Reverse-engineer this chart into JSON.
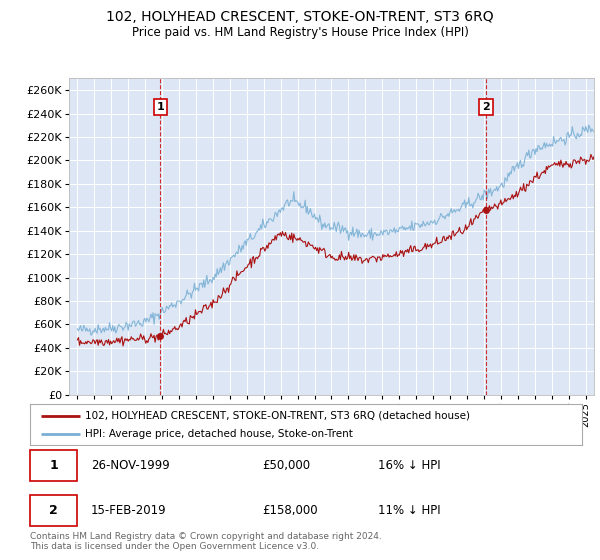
{
  "title": "102, HOLYHEAD CRESCENT, STOKE-ON-TRENT, ST3 6RQ",
  "subtitle": "Price paid vs. HM Land Registry's House Price Index (HPI)",
  "ylabel_ticks": [
    "£0",
    "£20K",
    "£40K",
    "£60K",
    "£80K",
    "£100K",
    "£120K",
    "£140K",
    "£160K",
    "£180K",
    "£200K",
    "£220K",
    "£240K",
    "£260K"
  ],
  "ytick_values": [
    0,
    20000,
    40000,
    60000,
    80000,
    100000,
    120000,
    140000,
    160000,
    180000,
    200000,
    220000,
    240000,
    260000
  ],
  "ylim": [
    0,
    270000
  ],
  "xlim_start": 1994.5,
  "xlim_end": 2025.5,
  "background_color": "#dce6f5",
  "plot_bg_color": "#dce6f5",
  "grid_color": "#ffffff",
  "sale1_date": 1999.9,
  "sale1_price": 50000,
  "sale1_label": "1",
  "sale2_date": 2019.12,
  "sale2_price": 158000,
  "sale2_label": "2",
  "legend_line1": "102, HOLYHEAD CRESCENT, STOKE-ON-TRENT, ST3 6RQ (detached house)",
  "legend_line2": "HPI: Average price, detached house, Stoke-on-Trent",
  "hpi_color": "#7ab0d4",
  "price_color": "#aa1111",
  "vline_color": "#cc0000",
  "box_color": "#cc0000",
  "footnote": "Contains HM Land Registry data © Crown copyright and database right 2024.\nThis data is licensed under the Open Government Licence v3.0."
}
